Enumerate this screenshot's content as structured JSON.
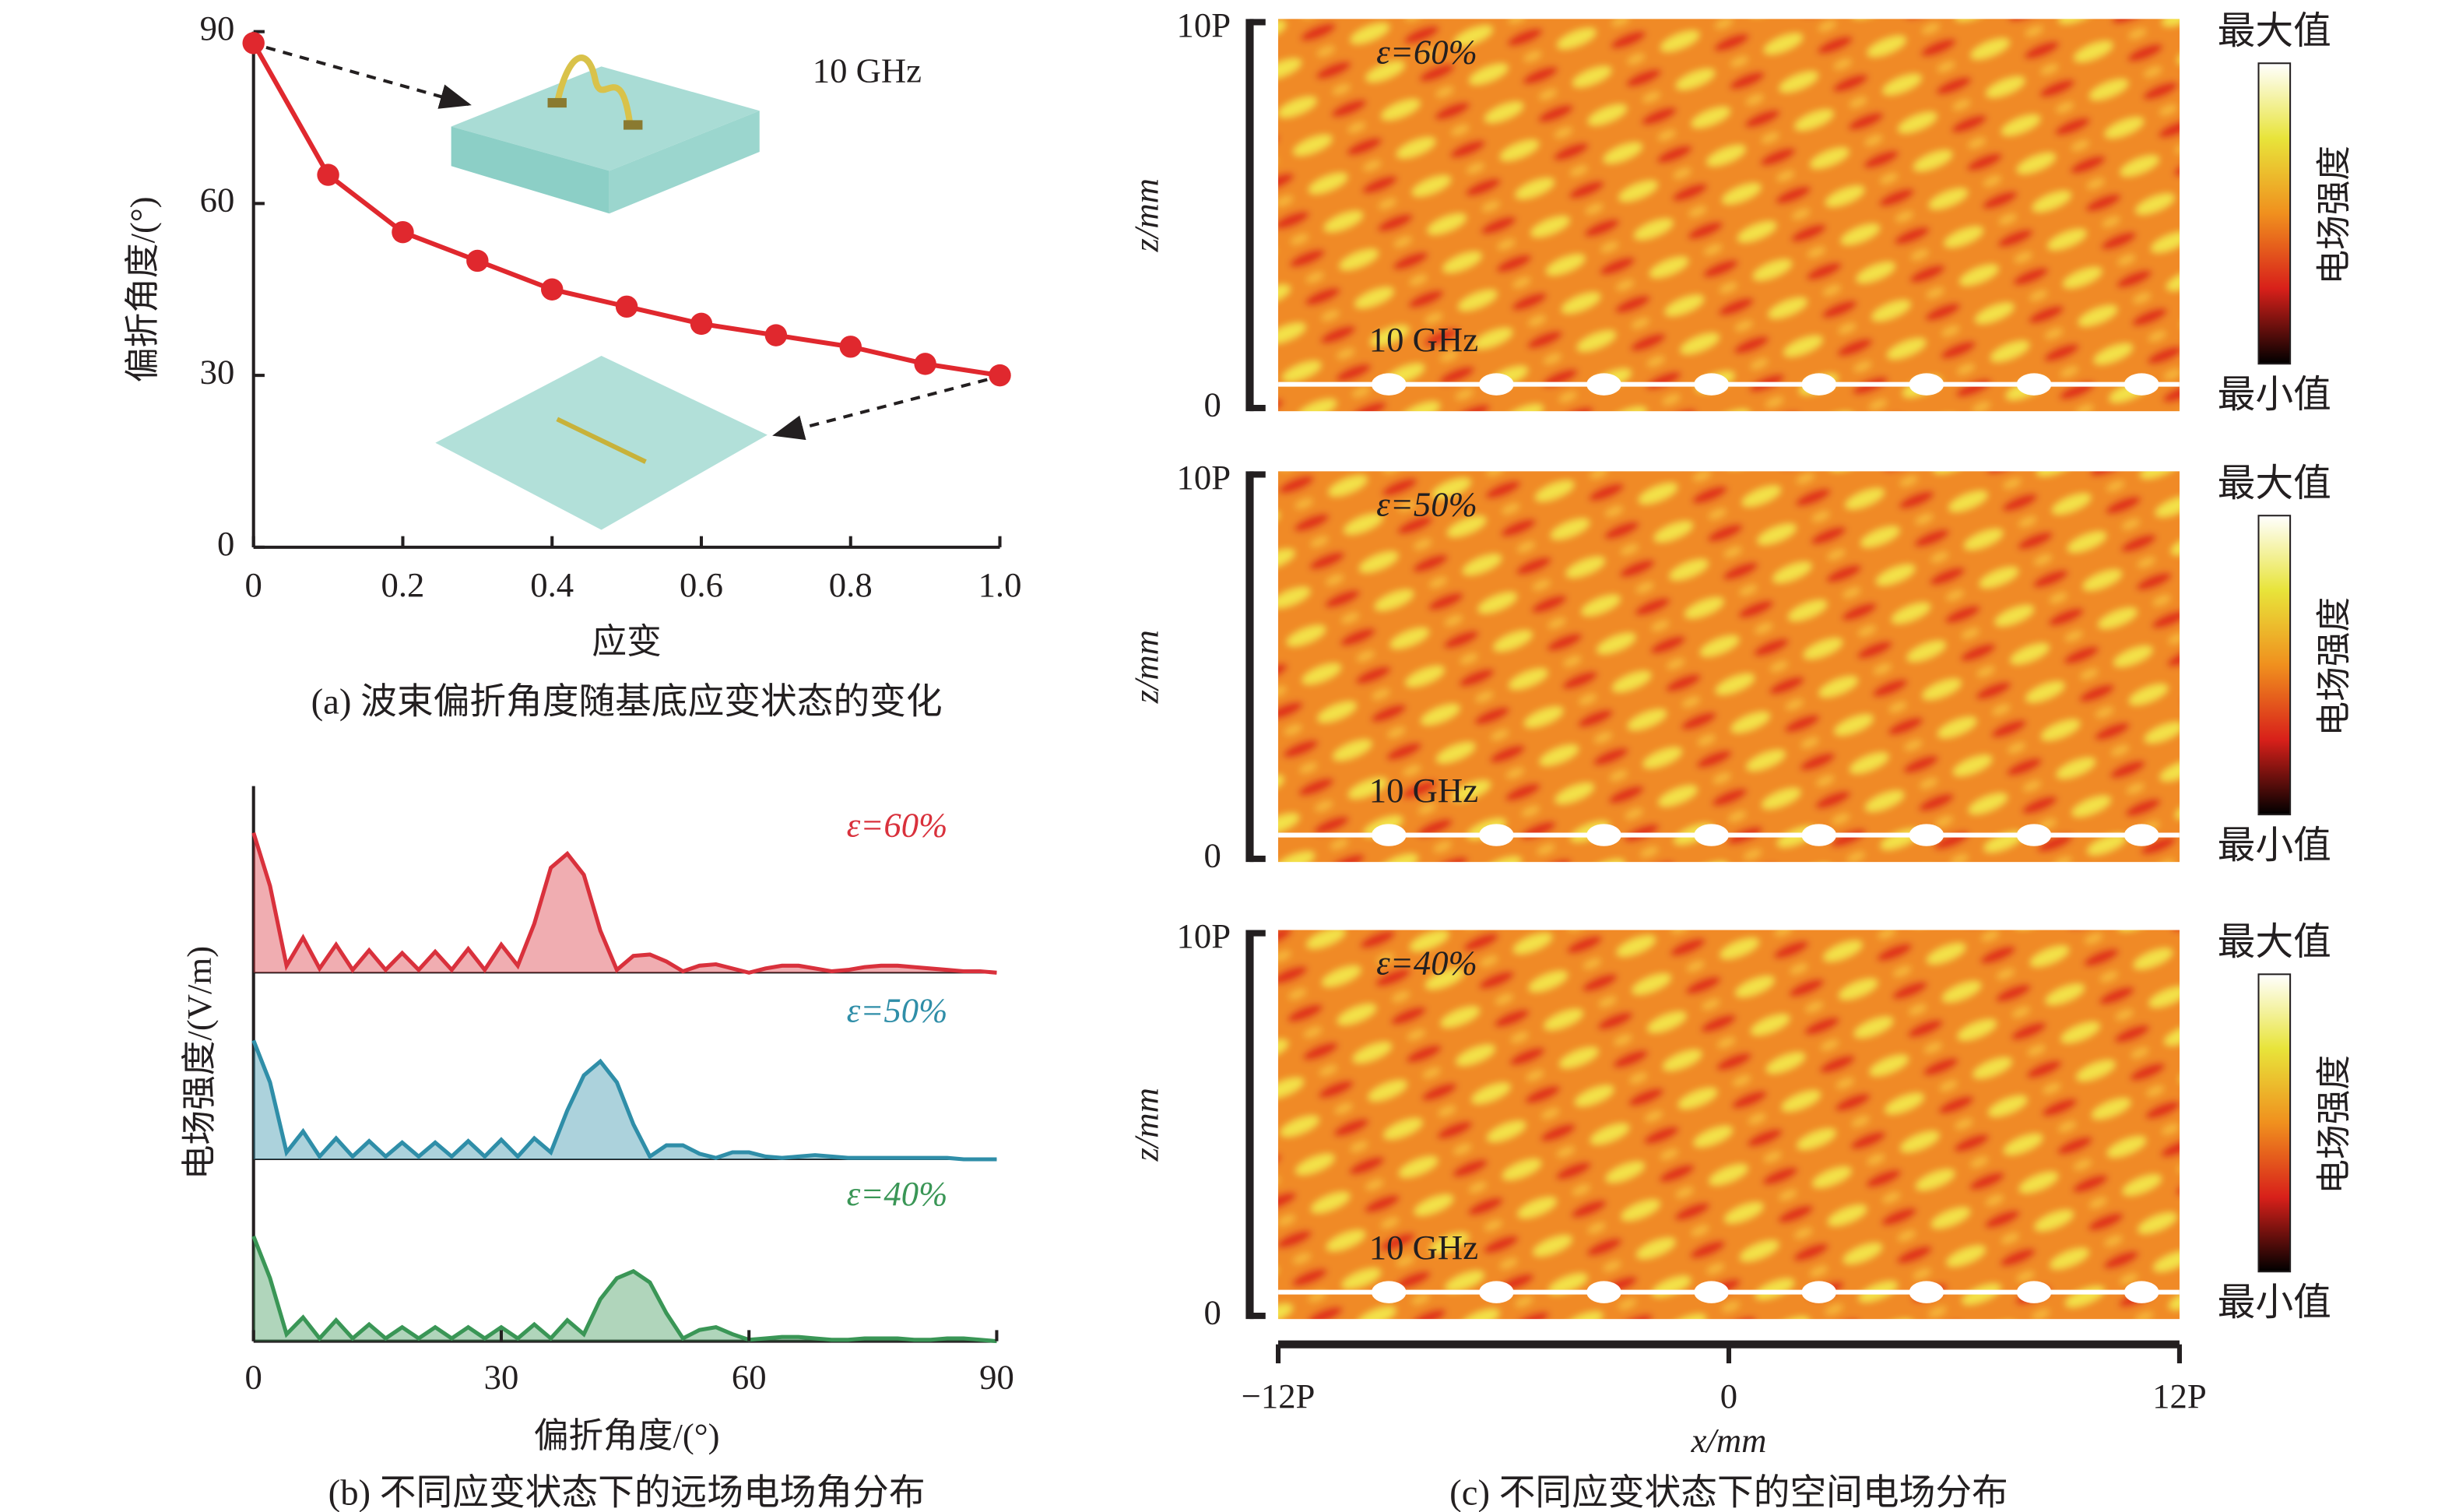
{
  "chart_data": [
    {
      "type": "line",
      "caption": "(a) 波束偏折角度随基底应变状态的变化",
      "xlabel": "应变",
      "ylabel": "偏折角度/(°)",
      "annotation": "10 GHz",
      "x": [
        0,
        0.1,
        0.2,
        0.3,
        0.4,
        0.5,
        0.6,
        0.7,
        0.8,
        0.9,
        1
      ],
      "values": [
        88,
        65,
        55,
        50,
        45,
        42,
        39,
        37,
        35,
        32,
        30
      ],
      "color": "#e0282e",
      "xlim": [
        0,
        1
      ],
      "xticks": [
        0,
        0.2,
        0.4,
        0.6,
        0.8,
        {
          "value": 1,
          "label": "1.0"
        }
      ],
      "ylim": [
        0,
        90
      ],
      "yticks": [
        0,
        30,
        60,
        90
      ]
    },
    {
      "type": "area",
      "caption": "(b) 不同应变状态下的远场电场角分布",
      "xlabel": "偏折角度/(°)",
      "ylabel": "电场强度/(V/m)",
      "x": [
        0,
        2,
        4,
        6,
        8,
        10,
        12,
        14,
        16,
        18,
        20,
        22,
        24,
        26,
        28,
        30,
        32,
        34,
        36,
        38,
        40,
        42,
        44,
        46,
        48,
        50,
        52,
        54,
        56,
        58,
        60,
        62,
        64,
        66,
        68,
        70,
        72,
        74,
        76,
        78,
        80,
        82,
        84,
        86,
        88,
        90
      ],
      "xlim": [
        0,
        90
      ],
      "xticks": [
        0,
        30,
        60,
        90
      ],
      "ylim": [
        0,
        1.3
      ],
      "series": [
        {
          "name": "ε=60%",
          "color": "#d9313c",
          "values": [
            1.0,
            0.62,
            0.05,
            0.25,
            0.03,
            0.2,
            0.02,
            0.16,
            0.02,
            0.14,
            0.02,
            0.15,
            0.02,
            0.17,
            0.02,
            0.2,
            0.05,
            0.35,
            0.75,
            0.85,
            0.7,
            0.3,
            0.02,
            0.12,
            0.13,
            0.08,
            0.01,
            0.05,
            0.06,
            0.03,
            0.0,
            0.03,
            0.05,
            0.05,
            0.03,
            0.01,
            0.02,
            0.04,
            0.05,
            0.05,
            0.04,
            0.03,
            0.02,
            0.01,
            0.01,
            0.0
          ]
        },
        {
          "name": "ε=50%",
          "color": "#2f8ea8",
          "values": [
            0.85,
            0.55,
            0.05,
            0.2,
            0.02,
            0.15,
            0.02,
            0.13,
            0.02,
            0.12,
            0.02,
            0.12,
            0.02,
            0.13,
            0.02,
            0.14,
            0.02,
            0.15,
            0.05,
            0.35,
            0.6,
            0.7,
            0.55,
            0.25,
            0.02,
            0.1,
            0.1,
            0.04,
            0.01,
            0.05,
            0.05,
            0.02,
            0.01,
            0.02,
            0.03,
            0.02,
            0.01,
            0.01,
            0.01,
            0.01,
            0.01,
            0.01,
            0.01,
            0.0,
            0.0,
            0.0
          ]
        },
        {
          "name": "ε=40%",
          "color": "#3a9656",
          "values": [
            0.75,
            0.45,
            0.05,
            0.17,
            0.02,
            0.15,
            0.02,
            0.12,
            0.02,
            0.1,
            0.02,
            0.1,
            0.02,
            0.1,
            0.02,
            0.1,
            0.02,
            0.12,
            0.02,
            0.15,
            0.05,
            0.3,
            0.45,
            0.5,
            0.42,
            0.2,
            0.02,
            0.08,
            0.1,
            0.05,
            0.01,
            0.02,
            0.03,
            0.03,
            0.02,
            0.01,
            0.01,
            0.02,
            0.02,
            0.02,
            0.01,
            0.01,
            0.02,
            0.02,
            0.01,
            0.0
          ]
        }
      ]
    }
  ],
  "field_maps": {
    "caption": "(c) 不同应变状态下的空间电场分布",
    "xlabel": "x/mm",
    "xticks": [
      "−12P",
      "0",
      "12P"
    ],
    "panels": [
      {
        "label": "ε=60%",
        "frequency": "10 GHz",
        "zlabel": "z/mm",
        "zticks": [
          "10P",
          "0"
        ],
        "colorbar": {
          "max": "最大值",
          "min": "最小值",
          "title": "电场强度"
        }
      },
      {
        "label": "ε=50%",
        "frequency": "10 GHz",
        "zlabel": "z/mm",
        "zticks": [
          "10P",
          "0"
        ],
        "colorbar": {
          "max": "最大值",
          "min": "最小值",
          "title": "电场强度"
        }
      },
      {
        "label": "ε=40%",
        "frequency": "10 GHz",
        "zlabel": "z/mm",
        "zticks": [
          "10P",
          "0"
        ],
        "colorbar": {
          "max": "最大值",
          "min": "最小值",
          "title": "电场强度"
        }
      }
    ]
  }
}
